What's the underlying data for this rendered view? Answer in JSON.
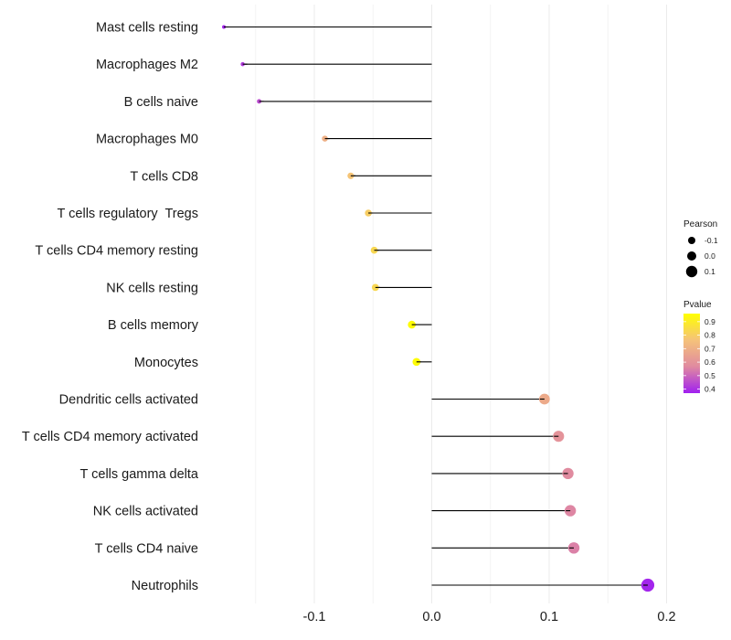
{
  "chart_data": {
    "type": "lollipop",
    "title": "",
    "xlabel": "",
    "ylabel": "",
    "xlim": [
      -0.19,
      0.2
    ],
    "x_ticks": [
      -0.1,
      0.0,
      0.1,
      0.2
    ],
    "x_tick_labels": [
      "-0.1",
      "0.0",
      "0.1",
      "0.2"
    ],
    "grid": true,
    "categories": [
      "Mast cells resting",
      "Macrophages M2",
      "B cells naive",
      "Macrophages M0",
      "T cells CD8",
      "T cells regulatory  Tregs",
      "T cells CD4 memory resting",
      "NK cells resting",
      "B cells memory",
      "Monocytes",
      "Dendritic cells activated",
      "T cells CD4 memory activated",
      "T cells gamma delta",
      "NK cells activated",
      "T cells CD4 naive",
      "Neutrophils"
    ],
    "values": [
      -0.177,
      -0.161,
      -0.147,
      -0.091,
      -0.069,
      -0.054,
      -0.049,
      -0.048,
      -0.017,
      -0.013,
      0.096,
      0.108,
      0.116,
      0.118,
      0.121,
      0.184
    ],
    "pvalues": [
      0.38,
      0.42,
      0.45,
      0.7,
      0.77,
      0.8,
      0.83,
      0.83,
      0.95,
      0.95,
      0.68,
      0.6,
      0.57,
      0.56,
      0.55,
      0.38
    ],
    "legends": {
      "size": {
        "title": "Pearson",
        "labels": [
          "-0.1",
          "0.0",
          "0.1"
        ],
        "values": [
          -0.1,
          0.0,
          0.1
        ]
      },
      "color": {
        "title": "Pvalue",
        "labels": [
          "0.9",
          "0.8",
          "0.7",
          "0.6",
          "0.5",
          "0.4"
        ],
        "values": [
          0.9,
          0.8,
          0.7,
          0.6,
          0.5,
          0.4
        ],
        "range": [
          0.37,
          0.96
        ],
        "colors": [
          "#A020F0",
          "#E08AA0",
          "#F5C27A",
          "#FFFF00"
        ]
      },
      "position": "right"
    }
  }
}
